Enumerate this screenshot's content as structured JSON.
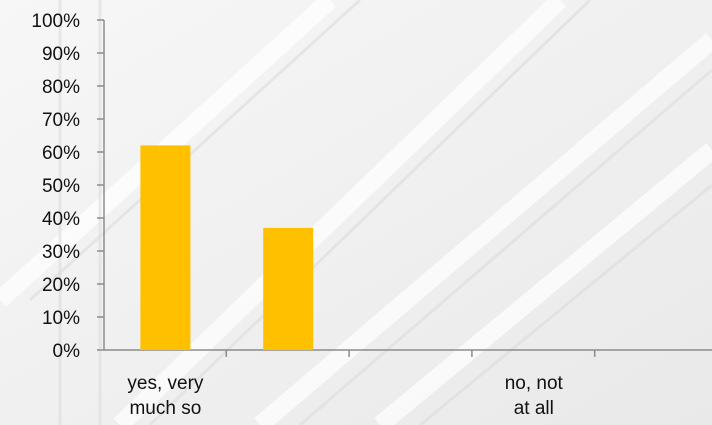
{
  "chart_data": {
    "type": "bar",
    "categories": [
      "yes, very much so",
      "",
      "",
      "no, not at all"
    ],
    "category_label_lines": [
      [
        "yes, very",
        "much so"
      ],
      [],
      [],
      [
        "no, not",
        "at all"
      ]
    ],
    "values": [
      62,
      37,
      0,
      0
    ],
    "ylim": [
      0,
      100
    ],
    "yticks": [
      "0%",
      "10%",
      "20%",
      "30%",
      "40%",
      "50%",
      "60%",
      "70%",
      "80%",
      "90%",
      "100%"
    ],
    "title": "",
    "xlabel": "",
    "ylabel": "",
    "grid": false,
    "legend": "none",
    "bar_color": "#FFC000"
  }
}
